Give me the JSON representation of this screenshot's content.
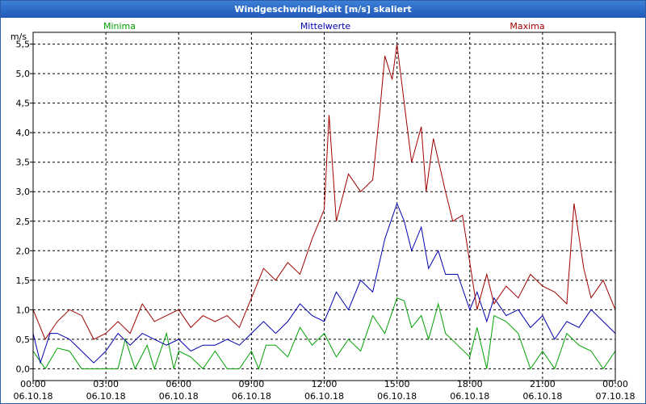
{
  "window": {
    "title": "Windgeschwindigkeit [m/s] skaliert"
  },
  "chart_data": {
    "type": "line",
    "title": "Windgeschwindigkeit [m/s] skaliert",
    "ylabel": "m/s",
    "ylim": [
      -0.2,
      5.7
    ],
    "yticks": [
      0.0,
      0.5,
      1.0,
      1.5,
      2.0,
      2.5,
      3.0,
      3.5,
      4.0,
      4.5,
      5.0,
      5.5
    ],
    "ytick_labels": [
      "0,0",
      "0,5",
      "1,0",
      "1,5",
      "2,0",
      "2,5",
      "3,0",
      "3,5",
      "4,0",
      "4,5",
      "5,0",
      "5,5"
    ],
    "x_range_hours": [
      0,
      24
    ],
    "x_ticks": [
      {
        "hour": 0,
        "time": "00:00",
        "date": "06.10.18"
      },
      {
        "hour": 3,
        "time": "03:00",
        "date": "06.10.18"
      },
      {
        "hour": 6,
        "time": "06:00",
        "date": "06.10.18"
      },
      {
        "hour": 9,
        "time": "09:00",
        "date": "06.10.18"
      },
      {
        "hour": 12,
        "time": "12:00",
        "date": "06.10.18"
      },
      {
        "hour": 15,
        "time": "15:00",
        "date": "06.10.18"
      },
      {
        "hour": 18,
        "time": "18:00",
        "date": "06.10.18"
      },
      {
        "hour": 21,
        "time": "21:00",
        "date": "06.10.18"
      },
      {
        "hour": 24,
        "time": "00:00",
        "date": "07.10.18"
      }
    ],
    "grid": true,
    "legend": "top",
    "series": [
      {
        "name": "Minima",
        "color": "#00a000",
        "values": [
          [
            0.0,
            0.3
          ],
          [
            0.5,
            0.0
          ],
          [
            1.0,
            0.35
          ],
          [
            1.5,
            0.3
          ],
          [
            2.0,
            0.0
          ],
          [
            2.5,
            0.0
          ],
          [
            3.0,
            0.0
          ],
          [
            3.5,
            0.0
          ],
          [
            3.8,
            0.5
          ],
          [
            4.2,
            0.0
          ],
          [
            4.7,
            0.4
          ],
          [
            5.0,
            0.0
          ],
          [
            5.5,
            0.6
          ],
          [
            5.8,
            0.0
          ],
          [
            6.0,
            0.3
          ],
          [
            6.5,
            0.2
          ],
          [
            7.0,
            0.0
          ],
          [
            7.5,
            0.3
          ],
          [
            8.0,
            0.0
          ],
          [
            8.5,
            0.0
          ],
          [
            9.0,
            0.3
          ],
          [
            9.3,
            0.0
          ],
          [
            9.6,
            0.4
          ],
          [
            10.0,
            0.4
          ],
          [
            10.5,
            0.2
          ],
          [
            11.0,
            0.7
          ],
          [
            11.5,
            0.4
          ],
          [
            12.0,
            0.6
          ],
          [
            12.5,
            0.2
          ],
          [
            13.0,
            0.5
          ],
          [
            13.5,
            0.3
          ],
          [
            14.0,
            0.9
          ],
          [
            14.5,
            0.6
          ],
          [
            15.0,
            1.2
          ],
          [
            15.3,
            1.15
          ],
          [
            15.6,
            0.7
          ],
          [
            16.0,
            0.9
          ],
          [
            16.3,
            0.5
          ],
          [
            16.7,
            1.1
          ],
          [
            17.0,
            0.6
          ],
          [
            17.5,
            0.4
          ],
          [
            18.0,
            0.2
          ],
          [
            18.3,
            0.7
          ],
          [
            18.7,
            0.0
          ],
          [
            19.0,
            0.9
          ],
          [
            19.5,
            0.8
          ],
          [
            20.0,
            0.6
          ],
          [
            20.5,
            0.0
          ],
          [
            21.0,
            0.3
          ],
          [
            21.5,
            0.0
          ],
          [
            22.0,
            0.6
          ],
          [
            22.5,
            0.4
          ],
          [
            23.0,
            0.3
          ],
          [
            23.5,
            0.0
          ],
          [
            24.0,
            0.3
          ]
        ]
      },
      {
        "name": "Mittelwerte",
        "color": "#0000b0",
        "values": [
          [
            0.0,
            0.6
          ],
          [
            0.3,
            0.1
          ],
          [
            0.7,
            0.6
          ],
          [
            1.0,
            0.6
          ],
          [
            1.5,
            0.5
          ],
          [
            2.0,
            0.3
          ],
          [
            2.5,
            0.1
          ],
          [
            3.0,
            0.3
          ],
          [
            3.5,
            0.6
          ],
          [
            4.0,
            0.4
          ],
          [
            4.5,
            0.6
          ],
          [
            5.0,
            0.5
          ],
          [
            5.5,
            0.4
          ],
          [
            6.0,
            0.5
          ],
          [
            6.5,
            0.3
          ],
          [
            7.0,
            0.4
          ],
          [
            7.5,
            0.4
          ],
          [
            8.0,
            0.5
          ],
          [
            8.5,
            0.4
          ],
          [
            9.0,
            0.6
          ],
          [
            9.5,
            0.8
          ],
          [
            10.0,
            0.6
          ],
          [
            10.5,
            0.8
          ],
          [
            11.0,
            1.1
          ],
          [
            11.5,
            0.9
          ],
          [
            12.0,
            0.8
          ],
          [
            12.5,
            1.3
          ],
          [
            13.0,
            1.0
          ],
          [
            13.5,
            1.5
          ],
          [
            14.0,
            1.3
          ],
          [
            14.5,
            2.2
          ],
          [
            15.0,
            2.8
          ],
          [
            15.3,
            2.5
          ],
          [
            15.6,
            2.0
          ],
          [
            16.0,
            2.4
          ],
          [
            16.3,
            1.7
          ],
          [
            16.7,
            2.0
          ],
          [
            17.0,
            1.6
          ],
          [
            17.5,
            1.6
          ],
          [
            18.0,
            1.0
          ],
          [
            18.3,
            1.3
          ],
          [
            18.7,
            0.8
          ],
          [
            19.0,
            1.2
          ],
          [
            19.5,
            0.9
          ],
          [
            20.0,
            1.0
          ],
          [
            20.5,
            0.7
          ],
          [
            21.0,
            0.9
          ],
          [
            21.5,
            0.5
          ],
          [
            22.0,
            0.8
          ],
          [
            22.5,
            0.7
          ],
          [
            23.0,
            1.0
          ],
          [
            23.5,
            0.8
          ],
          [
            24.0,
            0.6
          ]
        ]
      },
      {
        "name": "Maxima",
        "color": "#a00000",
        "values": [
          [
            0.0,
            1.0
          ],
          [
            0.5,
            0.5
          ],
          [
            1.0,
            0.8
          ],
          [
            1.5,
            1.0
          ],
          [
            2.0,
            0.9
          ],
          [
            2.5,
            0.5
          ],
          [
            3.0,
            0.6
          ],
          [
            3.5,
            0.8
          ],
          [
            4.0,
            0.6
          ],
          [
            4.5,
            1.1
          ],
          [
            5.0,
            0.8
          ],
          [
            5.5,
            0.9
          ],
          [
            6.0,
            1.0
          ],
          [
            6.5,
            0.7
          ],
          [
            7.0,
            0.9
          ],
          [
            7.5,
            0.8
          ],
          [
            8.0,
            0.9
          ],
          [
            8.5,
            0.7
          ],
          [
            9.0,
            1.2
          ],
          [
            9.5,
            1.7
          ],
          [
            10.0,
            1.5
          ],
          [
            10.5,
            1.8
          ],
          [
            11.0,
            1.6
          ],
          [
            11.5,
            2.2
          ],
          [
            12.0,
            2.7
          ],
          [
            12.2,
            4.3
          ],
          [
            12.5,
            2.5
          ],
          [
            13.0,
            3.3
          ],
          [
            13.5,
            3.0
          ],
          [
            14.0,
            3.2
          ],
          [
            14.3,
            4.4
          ],
          [
            14.5,
            5.3
          ],
          [
            14.8,
            4.9
          ],
          [
            15.0,
            5.5
          ],
          [
            15.3,
            4.5
          ],
          [
            15.6,
            3.5
          ],
          [
            16.0,
            4.1
          ],
          [
            16.2,
            3.0
          ],
          [
            16.5,
            3.9
          ],
          [
            17.0,
            3.0
          ],
          [
            17.3,
            2.5
          ],
          [
            17.7,
            2.6
          ],
          [
            18.0,
            1.8
          ],
          [
            18.3,
            1.0
          ],
          [
            18.7,
            1.6
          ],
          [
            19.0,
            1.1
          ],
          [
            19.5,
            1.4
          ],
          [
            20.0,
            1.2
          ],
          [
            20.5,
            1.6
          ],
          [
            21.0,
            1.4
          ],
          [
            21.5,
            1.3
          ],
          [
            22.0,
            1.1
          ],
          [
            22.3,
            2.8
          ],
          [
            22.7,
            1.7
          ],
          [
            23.0,
            1.2
          ],
          [
            23.5,
            1.5
          ],
          [
            24.0,
            1.0
          ]
        ]
      }
    ]
  }
}
